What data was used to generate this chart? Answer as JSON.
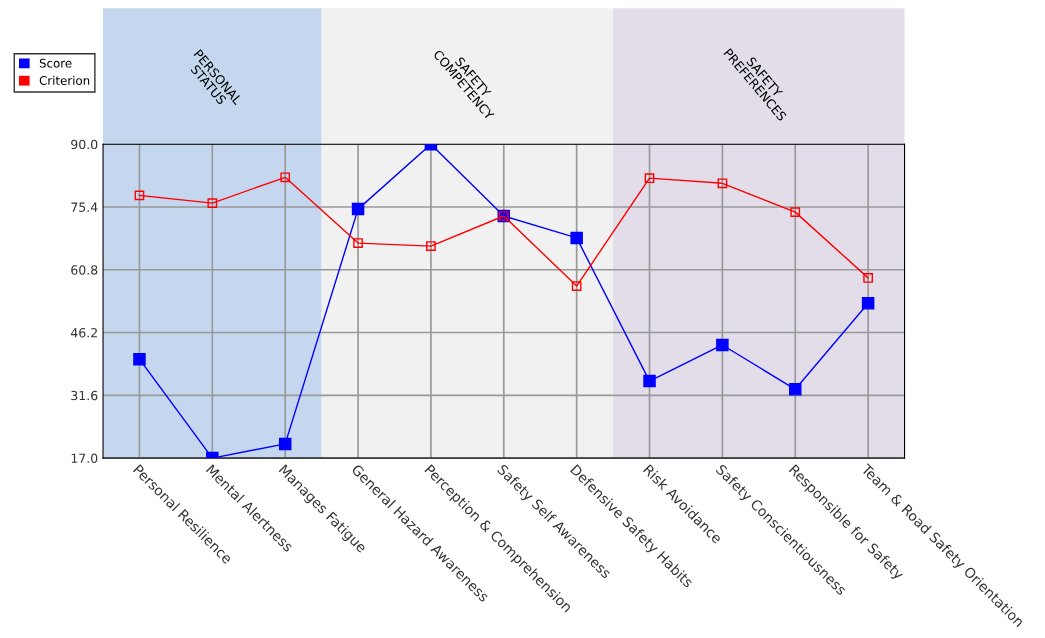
{
  "chart_data": {
    "type": "line",
    "categories": [
      "Personal Resilience",
      "Mental Alertness",
      "Manages Fatigue",
      "General Hazard Awareness",
      "Perception & Comprehension",
      "Safety Self Awareness",
      "Defensive Safety Habits",
      "Risk Avoidance",
      "Safety Conscientiousness",
      "Responsible for Safety",
      "Team & Road Safety Orientation"
    ],
    "series": [
      {
        "name": "Score",
        "color": "#0000ff",
        "values": [
          40.0,
          17.0,
          20.3,
          74.9,
          90.0,
          73.3,
          68.2,
          34.9,
          43.3,
          33.0,
          53.0
        ]
      },
      {
        "name": "Criterion",
        "color": "#ff0000",
        "values": [
          78.1,
          76.3,
          82.3,
          67.0,
          66.3,
          73.3,
          57.0,
          82.1,
          80.9,
          74.2,
          58.9
        ]
      }
    ],
    "ylim": [
      17,
      90
    ],
    "yticks": [
      {
        "value": 17,
        "label": "17.0"
      },
      {
        "value": 31.6,
        "label": "31.6"
      },
      {
        "value": 46.2,
        "label": "46.2"
      },
      {
        "value": 60.8,
        "label": "60.8"
      },
      {
        "value": 75.4,
        "label": "75.4"
      },
      {
        "value": 90,
        "label": "90.0"
      }
    ],
    "bands": [
      {
        "axis": "x",
        "from": "Personal Resilience",
        "to": "Manages Fatigue",
        "label": "PERSONAL\nSTATUS",
        "color": "#c5d7ee"
      },
      {
        "axis": "x",
        "from": "General Hazard Awareness",
        "to": "Defensive Safety Habits",
        "label": "SAFETY\nCOMPETENCY",
        "color": "#f1f1f1"
      },
      {
        "axis": "x",
        "from": "Risk Avoidance",
        "to": "Team & Road Safety Orientation",
        "label": "SAFETY\nPREFERENCES",
        "color": "#e2dde9"
      }
    ],
    "grid": true,
    "legend": "top left",
    "marker": "square",
    "line_style": "solid"
  }
}
